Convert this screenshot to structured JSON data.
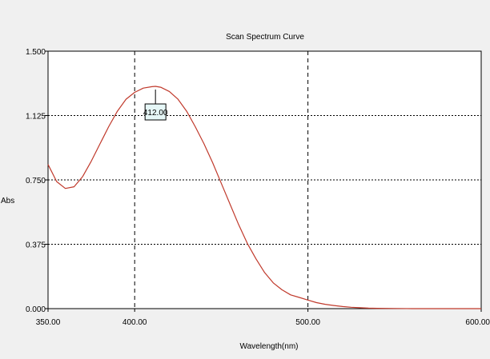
{
  "chart_data": {
    "type": "line",
    "title": "Scan Spectrum Curve",
    "xlabel": "Wavelength(nm)",
    "ylabel": "Abs",
    "xlim": [
      350,
      600
    ],
    "ylim": [
      0,
      1.5
    ],
    "x_ticks": [
      "350.00",
      "400.00",
      "500.00",
      "600.00"
    ],
    "x_tick_values": [
      350,
      400,
      500,
      600
    ],
    "y_ticks": [
      "0.000",
      "0.375",
      "0.750",
      "1.125",
      "1.500"
    ],
    "y_tick_values": [
      0,
      0.375,
      0.75,
      1.125,
      1.5
    ],
    "grid": true,
    "annotations": [
      {
        "text": "412.00",
        "x": 412,
        "y": 1.295
      }
    ],
    "series": [
      {
        "color": "#c0392b",
        "x": [
          350,
          355,
          360,
          365,
          370,
          375,
          380,
          385,
          390,
          395,
          400,
          405,
          410,
          412,
          415,
          420,
          425,
          430,
          435,
          440,
          445,
          450,
          455,
          460,
          465,
          470,
          475,
          480,
          485,
          490,
          495,
          500,
          505,
          510,
          515,
          520,
          525,
          530,
          535,
          540,
          550,
          560,
          570,
          580,
          590,
          600
        ],
        "y": [
          0.84,
          0.74,
          0.7,
          0.71,
          0.77,
          0.86,
          0.96,
          1.06,
          1.15,
          1.22,
          1.26,
          1.285,
          1.293,
          1.295,
          1.29,
          1.265,
          1.22,
          1.15,
          1.06,
          0.96,
          0.85,
          0.73,
          0.61,
          0.49,
          0.38,
          0.29,
          0.21,
          0.15,
          0.11,
          0.08,
          0.065,
          0.05,
          0.035,
          0.025,
          0.018,
          0.012,
          0.008,
          0.005,
          0.003,
          0.002,
          0.001,
          0.0,
          0.0,
          0.0,
          0.0,
          0.0
        ]
      }
    ]
  }
}
